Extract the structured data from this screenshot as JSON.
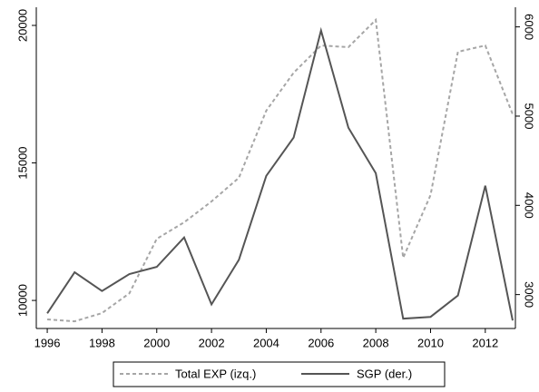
{
  "chart_data": {
    "type": "line",
    "x": [
      1996,
      1997,
      1998,
      1999,
      2000,
      2001,
      2002,
      2003,
      2004,
      2005,
      2006,
      2007,
      2008,
      2009,
      2010,
      2011,
      2012,
      2013
    ],
    "xlim": [
      1995.6,
      2013.1
    ],
    "xticks": [
      1996,
      1998,
      2000,
      2002,
      2004,
      2006,
      2008,
      2010,
      2012
    ],
    "ylim": [
      8980,
      20660
    ],
    "yticks": [
      10000,
      15000,
      20000
    ],
    "y2lim": [
      2620,
      6220
    ],
    "y2ticks": [
      3000,
      4000,
      5000,
      6000
    ],
    "series": [
      {
        "name": "Total EXP (izq.)",
        "color": "#a6a6a6",
        "dashed": true,
        "values": [
          9310,
          9240,
          9540,
          10260,
          12240,
          12840,
          13600,
          14460,
          16900,
          18280,
          19270,
          19210,
          20200,
          11550,
          13830,
          19040,
          19270,
          16770
        ]
      },
      {
        "name": "SGP (der.)",
        "color": "#555555",
        "dashed": false,
        "axis": "y2",
        "values": [
          2790,
          3250,
          3040,
          3230,
          3310,
          3640,
          2890,
          3390,
          4330,
          4760,
          5960,
          4870,
          4360,
          2730,
          2750,
          2990,
          4220,
          2710
        ]
      }
    ],
    "legend": "bottom"
  }
}
